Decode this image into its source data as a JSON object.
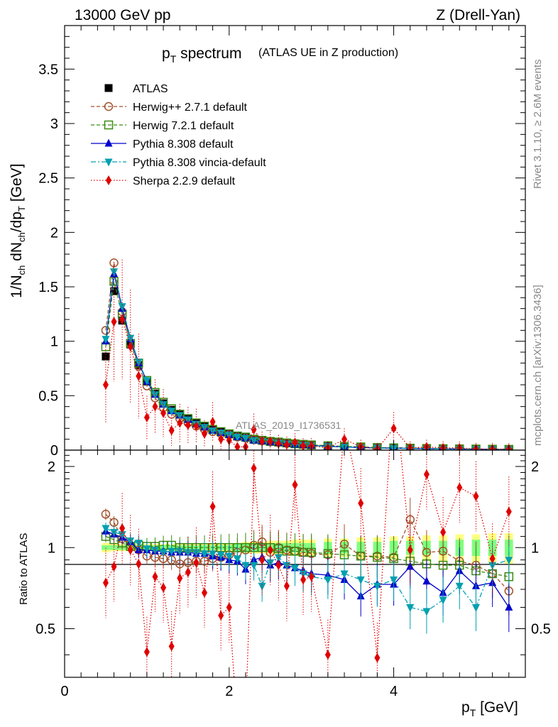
{
  "header": {
    "energy": "13000 GeV pp",
    "process": "Z (Drell-Yan)"
  },
  "title_main": "p",
  "title_sub": "T",
  "title_rest": "spectrum",
  "title_note": "(ATLAS UE in Z production)",
  "analysis_id": "ATLAS_2019_I1736531",
  "side_rivet": "Rivet 3.1.10, ≥ 2.6M events",
  "side_mcplots": "mcplots.cern.ch [arXiv:1306.3436]",
  "ylabel_main": "1/N_ch dN_ch/dp_T [GeV]",
  "ylabel_ratio": "Ratio to ATLAS",
  "xlabel": "p_T [GeV]",
  "colors": {
    "atlas": "#000000",
    "herwigpp": "#a0522d",
    "herwig7": "#3a8a10",
    "pythia": "#0000cc",
    "vincia": "#00a0b0",
    "sherpa": "#e00000",
    "band_outer": "#ffff80",
    "band_inner": "#80ff80"
  },
  "chart_data": [
    {
      "type": "line",
      "panel": "main",
      "xlim": [
        0,
        5.6
      ],
      "ylim": [
        0,
        3.9
      ],
      "xticks": [
        0,
        2,
        4
      ],
      "yticks": [
        0,
        0.5,
        1,
        1.5,
        2,
        2.5,
        3,
        3.5
      ],
      "ytick_labels": [
        "0",
        "0.5",
        "1",
        "1.5",
        "2",
        "2.5",
        "3",
        "3.5"
      ],
      "x": [
        0.5,
        0.6,
        0.7,
        0.8,
        0.9,
        1.0,
        1.1,
        1.2,
        1.3,
        1.4,
        1.5,
        1.6,
        1.7,
        1.8,
        1.9,
        2.0,
        2.1,
        2.2,
        2.3,
        2.4,
        2.5,
        2.6,
        2.7,
        2.8,
        2.9,
        3.0,
        3.2,
        3.4,
        3.6,
        3.8,
        4.0,
        4.2,
        4.4,
        4.6,
        4.8,
        5.0,
        5.2,
        5.4
      ],
      "series": [
        {
          "name": "ATLAS",
          "key": "atlas",
          "values": [
            0.86,
            1.46,
            1.19,
            0.97,
            0.78,
            0.63,
            0.52,
            0.43,
            0.37,
            0.33,
            0.29,
            0.25,
            0.22,
            0.19,
            0.17,
            0.15,
            0.13,
            0.12,
            0.1,
            0.09,
            0.08,
            0.075,
            0.068,
            0.06,
            0.055,
            0.05,
            0.042,
            0.035,
            0.03,
            0.025,
            0.022,
            0.019,
            0.016,
            0.014,
            0.012,
            0.011,
            0.009,
            0.008
          ]
        },
        {
          "name": "Herwig++ 2.7.1 default",
          "key": "herwigpp",
          "values": [
            1.1,
            1.72,
            1.27,
            0.98,
            0.77,
            0.59,
            0.48,
            0.39,
            0.33,
            0.29,
            0.25,
            0.22,
            0.19,
            0.17,
            0.15,
            0.14,
            0.12,
            0.11,
            0.095,
            0.085,
            0.075,
            0.07,
            0.064,
            0.057,
            0.052,
            0.047,
            0.04,
            0.033,
            0.028,
            0.023,
            0.021,
            0.018,
            0.015,
            0.013,
            0.011,
            0.01,
            0.008,
            0.007
          ]
        },
        {
          "name": "Herwig 7.2.1 default",
          "key": "herwig7",
          "values": [
            0.95,
            1.55,
            1.25,
            0.98,
            0.8,
            0.64,
            0.53,
            0.44,
            0.38,
            0.33,
            0.29,
            0.25,
            0.22,
            0.19,
            0.17,
            0.15,
            0.13,
            0.12,
            0.1,
            0.09,
            0.08,
            0.074,
            0.066,
            0.058,
            0.053,
            0.048,
            0.04,
            0.034,
            0.029,
            0.024,
            0.021,
            0.018,
            0.015,
            0.013,
            0.011,
            0.01,
            0.008,
            0.007
          ]
        },
        {
          "name": "Pythia 8.308 default",
          "key": "pythia",
          "values": [
            1.0,
            1.62,
            1.3,
            1.02,
            0.8,
            0.63,
            0.51,
            0.42,
            0.36,
            0.32,
            0.28,
            0.24,
            0.21,
            0.18,
            0.16,
            0.14,
            0.12,
            0.11,
            0.09,
            0.083,
            0.074,
            0.068,
            0.06,
            0.053,
            0.048,
            0.043,
            0.035,
            0.029,
            0.024,
            0.02,
            0.018,
            0.016,
            0.013,
            0.011,
            0.01,
            0.009,
            0.007,
            0.006
          ]
        },
        {
          "name": "Pythia 8.308 vincia-default",
          "key": "vincia",
          "values": [
            1.02,
            1.64,
            1.32,
            1.03,
            0.81,
            0.64,
            0.51,
            0.42,
            0.36,
            0.32,
            0.28,
            0.24,
            0.21,
            0.18,
            0.16,
            0.14,
            0.12,
            0.11,
            0.09,
            0.08,
            0.072,
            0.065,
            0.058,
            0.05,
            0.046,
            0.041,
            0.034,
            0.028,
            0.023,
            0.019,
            0.017,
            0.014,
            0.012,
            0.01,
            0.009,
            0.008,
            0.007,
            0.006
          ]
        },
        {
          "name": "Sherpa 2.2.9 default",
          "key": "sherpa",
          "values": [
            0.6,
            1.18,
            1.2,
            0.95,
            0.68,
            0.3,
            0.4,
            0.34,
            0.18,
            0.25,
            0.23,
            0.22,
            0.15,
            0.26,
            0.1,
            0.09,
            0.03,
            0.03,
            0.19,
            0.08,
            0.08,
            0.06,
            0.05,
            0.07,
            0.04,
            0.04,
            0.02,
            0.1,
            0.03,
            0.01,
            0.2,
            0.02,
            0.03,
            0.02,
            0.02,
            0.01,
            0.01,
            0.01
          ]
        }
      ],
      "legend": [
        "ATLAS",
        "Herwig++ 2.7.1 default",
        "Herwig 7.2.1 default",
        "Pythia 8.308 default",
        "Pythia 8.308 vincia-default",
        "Sherpa 2.2.9 default"
      ]
    },
    {
      "type": "line",
      "panel": "ratio",
      "xlim": [
        0,
        5.6
      ],
      "ylim": [
        0.33,
        2.3
      ],
      "xticks": [
        0,
        2,
        4
      ],
      "xtick_labels": [
        "0",
        "2",
        "4"
      ],
      "yticks": [
        0.5,
        1,
        2
      ],
      "ytick_labels": [
        "0.5",
        "1",
        "2"
      ],
      "x": [
        0.5,
        0.6,
        0.7,
        0.8,
        0.9,
        1.0,
        1.1,
        1.2,
        1.3,
        1.4,
        1.5,
        1.6,
        1.7,
        1.8,
        1.9,
        2.0,
        2.1,
        2.2,
        2.3,
        2.4,
        2.5,
        2.6,
        2.7,
        2.8,
        2.9,
        3.0,
        3.2,
        3.4,
        3.6,
        3.8,
        4.0,
        4.2,
        4.4,
        4.6,
        4.8,
        5.0,
        5.2,
        5.4
      ],
      "band_outer": [
        0.04,
        0.03,
        0.03,
        0.03,
        0.03,
        0.03,
        0.03,
        0.03,
        0.03,
        0.03,
        0.03,
        0.03,
        0.03,
        0.03,
        0.04,
        0.04,
        0.04,
        0.05,
        0.05,
        0.05,
        0.06,
        0.06,
        0.06,
        0.07,
        0.07,
        0.07,
        0.08,
        0.08,
        0.09,
        0.09,
        0.1,
        0.1,
        0.11,
        0.11,
        0.12,
        0.12,
        0.13,
        0.13
      ],
      "band_inner": [
        0.02,
        0.02,
        0.02,
        0.02,
        0.02,
        0.02,
        0.02,
        0.02,
        0.02,
        0.02,
        0.02,
        0.02,
        0.02,
        0.02,
        0.02,
        0.02,
        0.03,
        0.03,
        0.03,
        0.03,
        0.03,
        0.04,
        0.04,
        0.04,
        0.04,
        0.04,
        0.05,
        0.05,
        0.05,
        0.05,
        0.06,
        0.06,
        0.06,
        0.06,
        0.07,
        0.07,
        0.07,
        0.07
      ],
      "series": [
        {
          "name": "Herwig++ 2.7.1 default",
          "key": "herwigpp",
          "values": [
            1.33,
            1.24,
            1.08,
            1.02,
            0.98,
            0.93,
            0.92,
            0.91,
            0.9,
            0.87,
            0.88,
            0.89,
            0.89,
            0.91,
            0.92,
            0.94,
            0.96,
            0.98,
            1.02,
            1.05,
            0.96,
            1.0,
            0.98,
            0.97,
            0.96,
            0.95,
            0.94,
            1.03,
            0.93,
            0.93,
            0.92,
            1.27,
            0.96,
            0.97,
            0.89,
            0.86,
            0.8,
            0.69
          ]
        },
        {
          "name": "Herwig 7.2.1 default",
          "key": "herwig7",
          "values": [
            1.1,
            1.07,
            1.04,
            1.01,
            1.02,
            1.01,
            1.01,
            1.02,
            1.02,
            1.0,
            1.0,
            1.0,
            1.0,
            1.0,
            1.0,
            1.0,
            1.0,
            1.0,
            1.0,
            1.0,
            1.0,
            0.99,
            0.97,
            0.97,
            0.96,
            0.96,
            0.95,
            0.94,
            0.93,
            0.92,
            0.91,
            0.89,
            0.87,
            0.86,
            0.86,
            0.82,
            0.8,
            0.78
          ]
        },
        {
          "name": "Pythia 8.308 default",
          "key": "pythia",
          "values": [
            1.15,
            1.12,
            1.09,
            1.05,
            0.98,
            0.98,
            0.97,
            0.97,
            0.96,
            0.96,
            0.96,
            0.95,
            0.95,
            0.93,
            0.92,
            0.9,
            0.89,
            0.83,
            0.9,
            0.92,
            0.86,
            0.88,
            0.86,
            0.84,
            0.82,
            0.8,
            0.79,
            0.76,
            0.66,
            0.73,
            0.73,
            0.85,
            0.75,
            0.68,
            0.82,
            0.72,
            0.74,
            0.6
          ]
        },
        {
          "name": "Pythia 8.308 vincia-default",
          "key": "vincia",
          "values": [
            1.18,
            1.14,
            1.12,
            1.06,
            1.04,
            0.99,
            0.98,
            0.96,
            0.97,
            0.97,
            0.96,
            0.96,
            0.95,
            0.95,
            0.94,
            0.93,
            0.91,
            0.86,
            0.86,
            0.72,
            0.88,
            0.92,
            0.86,
            0.84,
            0.8,
            0.78,
            0.76,
            0.8,
            0.76,
            0.72,
            0.76,
            0.6,
            0.58,
            0.64,
            0.72,
            0.6,
            0.86,
            0.9
          ]
        },
        {
          "name": "Sherpa 2.2.9 default",
          "key": "sherpa",
          "values": [
            0.74,
            0.85,
            1.18,
            0.98,
            0.87,
            0.41,
            0.78,
            0.71,
            0.43,
            0.77,
            0.81,
            0.88,
            0.68,
            1.42,
            0.56,
            0.6,
            0.22,
            0.23,
            1.97,
            0.9,
            0.98,
            0.86,
            0.72,
            1.71,
            0.76,
            0.78,
            0.4,
            2.9,
            1.46,
            0.39,
            4.21,
            0.98,
            1.87,
            1.14,
            1.67,
            1.55,
            0.91,
            1.36
          ]
        }
      ]
    }
  ]
}
